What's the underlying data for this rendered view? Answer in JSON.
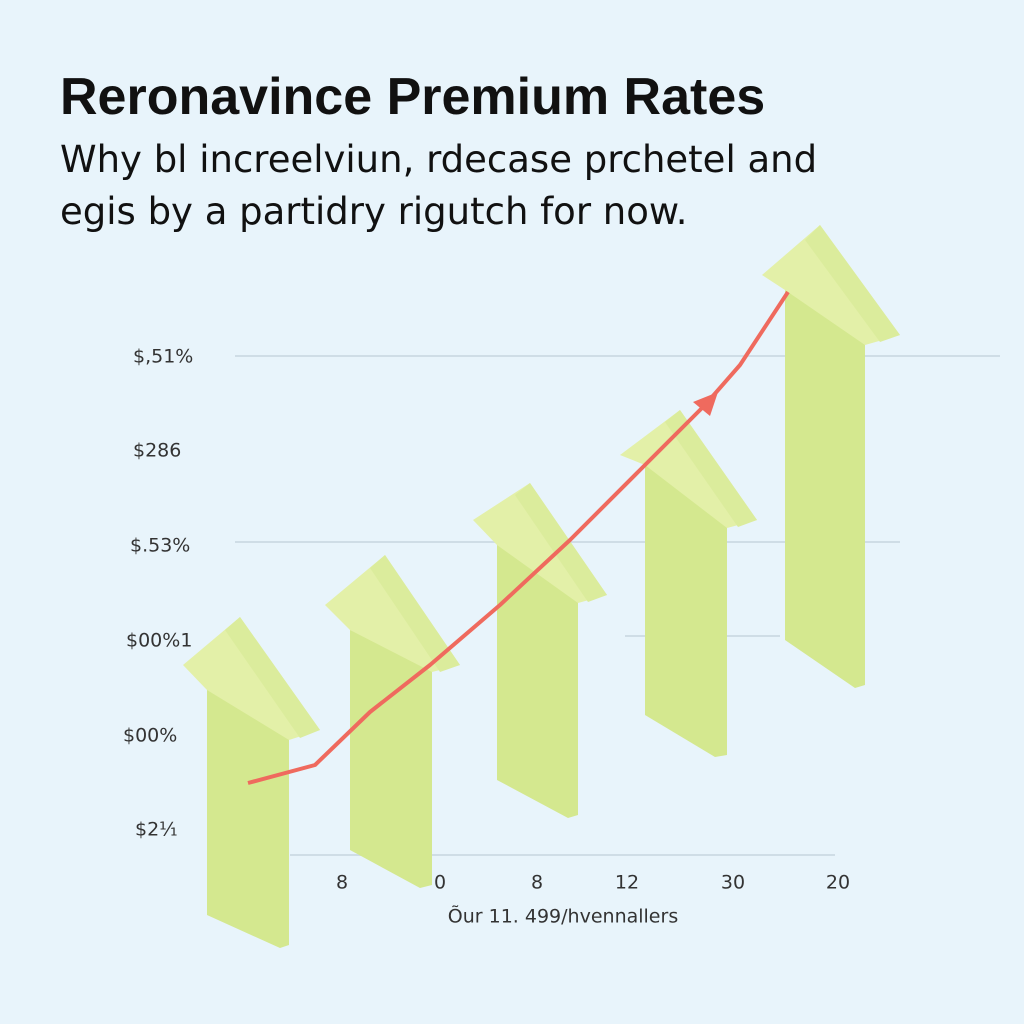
{
  "header": {
    "title": "Reronavince Premium Rates",
    "subtitle_lines": [
      "Why bl increelviun, rdecase prchetel and",
      "egis by a partidry rigutch for now."
    ]
  },
  "y_labels": [
    "$,51%",
    "$286",
    "$.53%",
    "$00%1",
    "$00%",
    "$2¹⁄₁"
  ],
  "x_labels": [
    "8",
    "0",
    "8",
    "12",
    "30",
    "20"
  ],
  "x_axis_label": "Õur 11. 499/hvennallers"
}
